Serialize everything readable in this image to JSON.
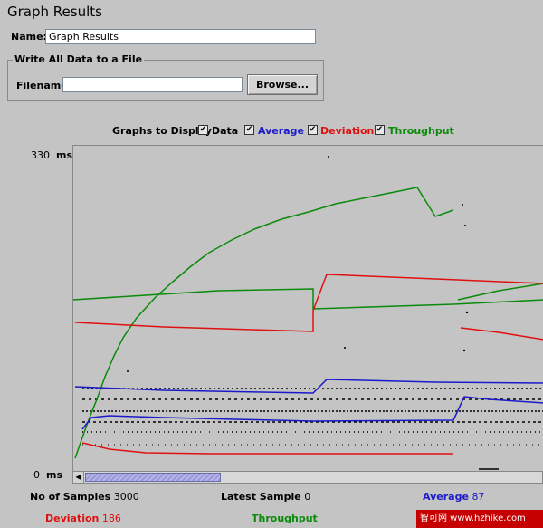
{
  "title": "Graph Results",
  "name_field": {
    "label": "Name:",
    "value": "Graph Results"
  },
  "file_group": {
    "legend": "Write All Data to a File",
    "filename_label": "Filename",
    "filename_value": "",
    "browse_label": "Browse..."
  },
  "graphs_to_display": {
    "label": "Graphs to Display",
    "options": [
      {
        "label": "Data",
        "checked": true,
        "color": "#000000"
      },
      {
        "label": "Average",
        "checked": true,
        "color": "#1a1acc"
      },
      {
        "label": "Deviation",
        "checked": true,
        "color": "#e01010"
      },
      {
        "label": "Throughput",
        "checked": true,
        "color": "#0b8a0b"
      }
    ]
  },
  "axis": {
    "max_value": "330",
    "max_unit": "ms",
    "min_value": "0",
    "min_unit": "ms"
  },
  "stats": {
    "samples_label": "No of Samples",
    "samples_value": "3000",
    "latest_label": "Latest Sample",
    "latest_value": "0",
    "average_label": "Average",
    "average_value": "87",
    "deviation_label": "Deviation",
    "deviation_value": "186",
    "throughput_label": "Throughput"
  },
  "watermark": "智可网 www.hzhike.com",
  "colors": {
    "average": "#1a1acc",
    "deviation": "#e01010",
    "throughput": "#0b8a0b",
    "data": "#000000"
  }
}
